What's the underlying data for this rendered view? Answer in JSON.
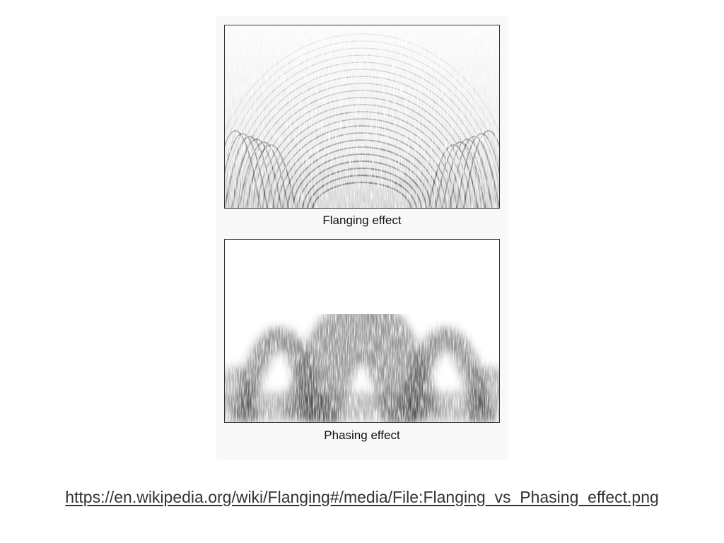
{
  "figure": {
    "panels": [
      {
        "caption": "Flanging effect",
        "effect": "flanging"
      },
      {
        "caption": "Phasing effect",
        "effect": "phasing"
      }
    ],
    "colors": {
      "background": "#f8f8f8",
      "ink": "#333333"
    }
  },
  "source": {
    "link_text": "https://en.wikipedia.org/wiki/Flanging#/media/File:Flanging_vs_Phasing_effect.png"
  }
}
